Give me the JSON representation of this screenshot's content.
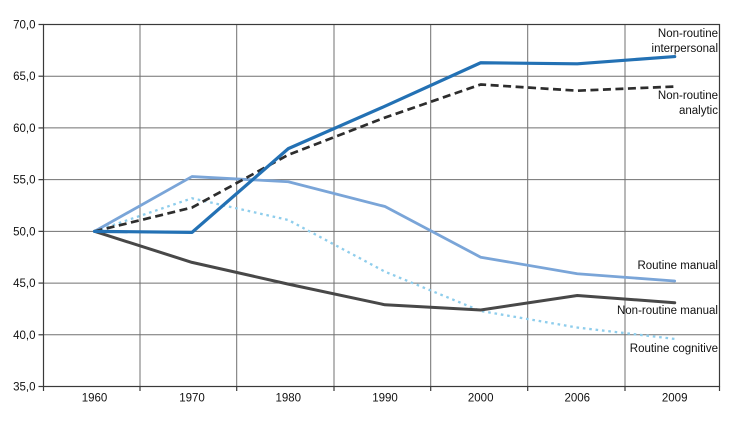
{
  "chart_data": {
    "type": "line",
    "title": "",
    "xlabel": "",
    "ylabel": "",
    "grid": true,
    "legend_position": "inline-right-of-lines",
    "decimal_separator": ",",
    "categories": [
      "1960",
      "1970",
      "1980",
      "1990",
      "2000",
      "2006",
      "2009"
    ],
    "y_axis": {
      "min": 35,
      "max": 70,
      "step": 5,
      "ticks": [
        {
          "value": 70,
          "label": "70,0"
        },
        {
          "value": 65,
          "label": "65,0"
        },
        {
          "value": 60,
          "label": "60,0"
        },
        {
          "value": 55,
          "label": "55,0"
        },
        {
          "value": 50,
          "label": "50,0"
        },
        {
          "value": 45,
          "label": "45,0"
        },
        {
          "value": 40,
          "label": "40,0"
        },
        {
          "value": 35,
          "label": "35,0"
        }
      ]
    },
    "series": [
      {
        "id": "non-routine-interpersonal",
        "name": "Non-routine interpersonal",
        "label_lines": [
          "Non-routine",
          "interpersonal"
        ],
        "color": "#2371b4",
        "style": "solid",
        "width": 3.2,
        "values": [
          50.0,
          49.9,
          58.0,
          62.1,
          66.3,
          66.2,
          66.9
        ]
      },
      {
        "id": "non-routine-analytic",
        "name": "Non-routine analytic",
        "label_lines": [
          "Non-routine",
          "analytic"
        ],
        "color": "#2d2d2d",
        "style": "dashed",
        "width": 2.7,
        "values": [
          50.0,
          52.3,
          57.4,
          61.0,
          64.2,
          63.6,
          64.0
        ]
      },
      {
        "id": "routine-manual",
        "name": "Routine manual",
        "label_lines": [
          "Routine manual"
        ],
        "color": "#7aa5d8",
        "style": "solid",
        "width": 2.8,
        "values": [
          50.0,
          55.3,
          54.8,
          52.4,
          47.5,
          45.9,
          45.2
        ]
      },
      {
        "id": "non-routine-manual",
        "name": "Non-routine manual",
        "label_lines": [
          "Non-routine manual"
        ],
        "color": "#484848",
        "style": "solid",
        "width": 3.0,
        "values": [
          50.0,
          47.0,
          44.9,
          42.9,
          42.4,
          43.8,
          43.1
        ]
      },
      {
        "id": "routine-cognitive",
        "name": "Routine cognitive",
        "label_lines": [
          "Routine cognitive"
        ],
        "color": "#8ecdec",
        "style": "dotted",
        "width": 2.3,
        "values": [
          50.0,
          53.2,
          51.1,
          46.1,
          42.3,
          40.7,
          39.6
        ]
      }
    ],
    "colors": {
      "grid": "#707070",
      "axis": "#3a3a3a",
      "text": "#111111",
      "background": "#ffffff"
    }
  }
}
